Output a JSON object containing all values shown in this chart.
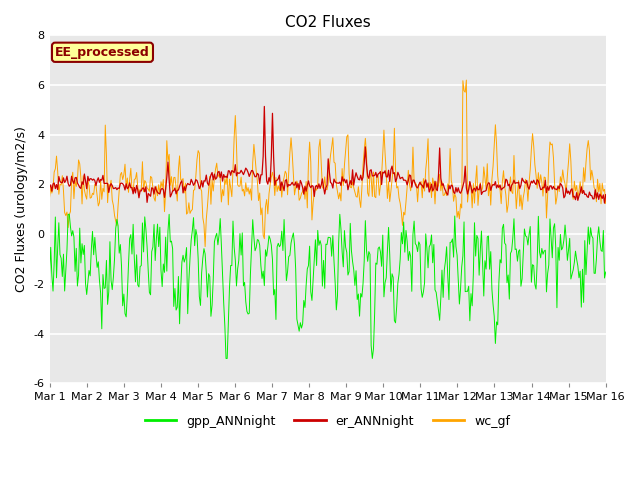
{
  "title": "CO2 Fluxes",
  "ylabel": "CO2 Fluxes (urology/m2/s)",
  "xlabel": "",
  "ylim": [
    -6,
    8
  ],
  "background_color": "#e8e8e8",
  "figure_color": "#ffffff",
  "annotation_text": "EE_processed",
  "annotation_facecolor": "#ffff99",
  "annotation_edgecolor": "#8b0000",
  "annotation_textcolor": "#8b0000",
  "legend_labels": [
    "gpp_ANNnight",
    "er_ANNnight",
    "wc_gf"
  ],
  "line_colors": [
    "#00ee00",
    "#cc0000",
    "#ffa500"
  ],
  "grid_color": "#ffffff",
  "n_points": 480,
  "x_tick_labels": [
    "Mar 1",
    "Mar 2",
    "Mar 3",
    "Mar 4",
    "Mar 5",
    "Mar 6",
    "Mar 7",
    "Mar 8",
    "Mar 9",
    "Mar 10",
    "Mar 11",
    "Mar 12",
    "Mar 13",
    "Mar 14",
    "Mar 15",
    "Mar 16"
  ],
  "title_fontsize": 11,
  "tick_fontsize": 8,
  "ylabel_fontsize": 9
}
